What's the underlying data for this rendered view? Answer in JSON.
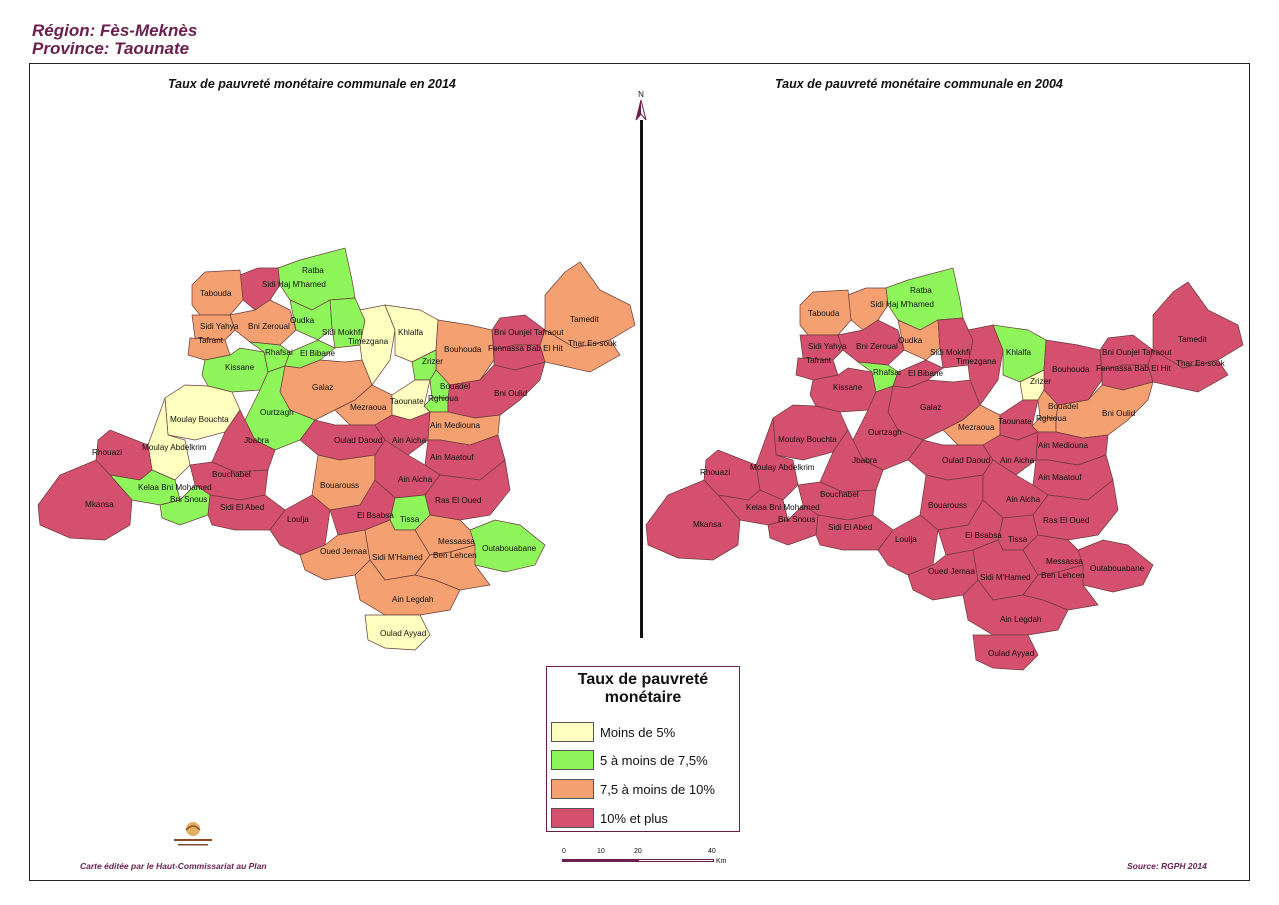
{
  "header": {
    "region": "Région: Fès-Meknès",
    "province": "Province: Taounate"
  },
  "maps": {
    "left_title": "Taux de pauvreté monétaire communale en 2014",
    "right_title": "Taux de pauvreté monétaire communale en 2004"
  },
  "north_label": "N",
  "legend": {
    "title_line1": "Taux de pauvreté",
    "title_line2": "monétaire",
    "items": [
      {
        "label": "Moins de 5%",
        "color": "#ffffbf"
      },
      {
        "label": "5 à moins de 7,5%",
        "color": "#8ef55a"
      },
      {
        "label": "7,5 à moins de 10%",
        "color": "#f4a070"
      },
      {
        "label": "10% et plus",
        "color": "#d4506e"
      }
    ]
  },
  "scale": {
    "ticks": [
      "0",
      "10",
      "20",
      "40"
    ],
    "unit": "Km"
  },
  "footer": {
    "left": "Carte éditée par le Haut-Commissariat au Plan",
    "right": "Source: RGPH 2014"
  },
  "communes_2014": [
    {
      "name": "Ratba",
      "cls": 1
    },
    {
      "name": "Sidi Haj M'hamed",
      "cls": 3
    },
    {
      "name": "Tabouda",
      "cls": 2
    },
    {
      "name": "Sidi Yahya",
      "cls": 2
    },
    {
      "name": "Bni Zeroual",
      "cls": 2
    },
    {
      "name": "Tafrant",
      "cls": 2
    },
    {
      "name": "Oudka",
      "cls": 1
    },
    {
      "name": "Sidi Mokhfi",
      "cls": 1
    },
    {
      "name": "Timezgana",
      "cls": 0
    },
    {
      "name": "Khlalfa",
      "cls": 0
    },
    {
      "name": "Kissane",
      "cls": 1
    },
    {
      "name": "Rhafsai",
      "cls": 1
    },
    {
      "name": "El Bibane",
      "cls": 1
    },
    {
      "name": "Bouhouda",
      "cls": 2
    },
    {
      "name": "Bni Ounjel Tafraout",
      "cls": 3
    },
    {
      "name": "Fennassa Bab El Hit",
      "cls": 3
    },
    {
      "name": "Tamedit",
      "cls": 2
    },
    {
      "name": "Thar Es-souk",
      "cls": 2
    },
    {
      "name": "Galaz",
      "cls": 2
    },
    {
      "name": "Zrizer",
      "cls": 1
    },
    {
      "name": "Bouadel",
      "cls": 1
    },
    {
      "name": "Rghioua",
      "cls": 1
    },
    {
      "name": "Bni Oulid",
      "cls": 3
    },
    {
      "name": "Mezraoua",
      "cls": 2
    },
    {
      "name": "Taounate",
      "cls": 0
    },
    {
      "name": "Ourtzagh",
      "cls": 1
    },
    {
      "name": "Moulay Bouchta",
      "cls": 0
    },
    {
      "name": "Moulay Abdelkrim",
      "cls": 0
    },
    {
      "name": "Rhouazi",
      "cls": 3
    },
    {
      "name": "Jbabra",
      "cls": 3
    },
    {
      "name": "Oulad Daoud",
      "cls": 3
    },
    {
      "name": "Ain Aicha",
      "cls": 3
    },
    {
      "name": "Ain Mediouna",
      "cls": 2
    },
    {
      "name": "Ain Maatouf",
      "cls": 3
    },
    {
      "name": "Bouchabel",
      "cls": 3
    },
    {
      "name": "Kelaa Bni Mohamed",
      "cls": 1
    },
    {
      "name": "Bni Snous",
      "cls": 1
    },
    {
      "name": "Mkansa",
      "cls": 3
    },
    {
      "name": "Sidi El Abed",
      "cls": 3
    },
    {
      "name": "Bouarouss",
      "cls": 2
    },
    {
      "name": "Ain Aicha ",
      "cls": 3
    },
    {
      "name": "Ras El Oued",
      "cls": 3
    },
    {
      "name": "Loulja",
      "cls": 3
    },
    {
      "name": "El Bsabsa",
      "cls": 3
    },
    {
      "name": "Tissa",
      "cls": 1
    },
    {
      "name": "Outabouabane",
      "cls": 1
    },
    {
      "name": "Oued Jemaa",
      "cls": 2
    },
    {
      "name": "Sidi M'Hamed",
      "cls": 2
    },
    {
      "name": "Messassa",
      "cls": 2
    },
    {
      "name": "Ben Lehcen",
      "cls": 2
    },
    {
      "name": "Ain Legdah",
      "cls": 2
    },
    {
      "name": "Oulad Ayyad",
      "cls": 0
    }
  ],
  "communes_2004": [
    {
      "name": "Ratba",
      "cls": 1
    },
    {
      "name": "Sidi Haj M'hamed",
      "cls": 2
    },
    {
      "name": "Tabouda",
      "cls": 2
    },
    {
      "name": "Sidi Yahya",
      "cls": 3
    },
    {
      "name": "Bni Zeroual",
      "cls": 3
    },
    {
      "name": "Tafrant",
      "cls": 3
    },
    {
      "name": "Oudka",
      "cls": 2
    },
    {
      "name": "Sidi Mokhfi",
      "cls": 3
    },
    {
      "name": "Timezgana",
      "cls": 3
    },
    {
      "name": "Khlalfa",
      "cls": 1
    },
    {
      "name": "Kissane",
      "cls": 3
    },
    {
      "name": "Rhafsai",
      "cls": 1
    },
    {
      "name": "El Bibane",
      "cls": 3
    },
    {
      "name": "Bouhouda",
      "cls": 3
    },
    {
      "name": "Bni Ounjel Tafraout",
      "cls": 3
    },
    {
      "name": "Fennassa Bab El Hit",
      "cls": 3
    },
    {
      "name": "Tamedit",
      "cls": 3
    },
    {
      "name": "Thar Es-souk",
      "cls": 3
    },
    {
      "name": "Galaz",
      "cls": 3
    },
    {
      "name": "Zrizer",
      "cls": 0
    },
    {
      "name": "Bouadel",
      "cls": 2
    },
    {
      "name": "Rghioua",
      "cls": 2
    },
    {
      "name": "Bni Oulid",
      "cls": 2
    },
    {
      "name": "Mezraoua",
      "cls": 2
    },
    {
      "name": "Taounate",
      "cls": 3
    },
    {
      "name": "Ourtzagh",
      "cls": 3
    },
    {
      "name": "Moulay Bouchta",
      "cls": 3
    },
    {
      "name": "Moulay Abdelkrim",
      "cls": 3
    },
    {
      "name": "Rhouazi",
      "cls": 3
    },
    {
      "name": "Jbabra",
      "cls": 3
    },
    {
      "name": "Oulad Daoud",
      "cls": 3
    },
    {
      "name": "Ain Aicha",
      "cls": 3
    },
    {
      "name": "Ain Mediouna",
      "cls": 3
    },
    {
      "name": "Ain Maatouf",
      "cls": 3
    },
    {
      "name": "Bouchabel",
      "cls": 3
    },
    {
      "name": "Kelaa Bni Mohamed",
      "cls": 3
    },
    {
      "name": "Bni Snous",
      "cls": 3
    },
    {
      "name": "Mkansa",
      "cls": 3
    },
    {
      "name": "Sidi El Abed",
      "cls": 3
    },
    {
      "name": "Bouarouss",
      "cls": 3
    },
    {
      "name": "Ain Aicha ",
      "cls": 3
    },
    {
      "name": "Ras El Oued",
      "cls": 3
    },
    {
      "name": "Loulja",
      "cls": 3
    },
    {
      "name": "El Bsabsa",
      "cls": 3
    },
    {
      "name": "Tissa",
      "cls": 3
    },
    {
      "name": "Outabouabane",
      "cls": 3
    },
    {
      "name": "Oued Jemaa",
      "cls": 3
    },
    {
      "name": "Sidi M'Hamed",
      "cls": 3
    },
    {
      "name": "Messassa",
      "cls": 3
    },
    {
      "name": "Ben Lehcen",
      "cls": 3
    },
    {
      "name": "Ain Legdah",
      "cls": 3
    },
    {
      "name": "Oulad Ayyad",
      "cls": 3
    }
  ]
}
